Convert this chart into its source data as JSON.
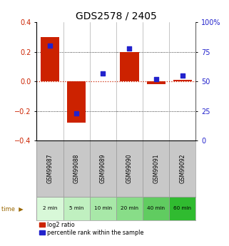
{
  "title": "GDS2578 / 2405",
  "samples": [
    "GSM99087",
    "GSM99088",
    "GSM99089",
    "GSM99090",
    "GSM99091",
    "GSM99092"
  ],
  "time_labels": [
    "2 min",
    "5 min",
    "10 min",
    "20 min",
    "40 min",
    "60 min"
  ],
  "log2_ratio": [
    0.3,
    -0.28,
    0.003,
    0.2,
    -0.018,
    0.008
  ],
  "percentile_rank": [
    80,
    23,
    57,
    78,
    52,
    55
  ],
  "bar_color": "#cc2200",
  "dot_color": "#2222cc",
  "ylim_left": [
    -0.4,
    0.4
  ],
  "ylim_right": [
    0,
    100
  ],
  "yticks_left": [
    -0.4,
    -0.2,
    0.0,
    0.2,
    0.4
  ],
  "yticks_right": [
    0,
    25,
    50,
    75,
    100
  ],
  "ytick_labels_right": [
    "0",
    "25",
    "50",
    "75",
    "100%"
  ],
  "hline_color": "#cc2200",
  "grid_color": "#000000",
  "bg_color": "#ffffff",
  "sample_bg_color": "#c8c8c8",
  "time_colors": [
    "#d8f8d8",
    "#c0f0c0",
    "#a8e8a8",
    "#88dd88",
    "#60cc60",
    "#30bb30"
  ],
  "legend_labels": [
    "log2 ratio",
    "percentile rank within the sample"
  ],
  "bar_width": 0.7,
  "title_fontsize": 10,
  "tick_fontsize": 7,
  "time_text_color": "#996600"
}
